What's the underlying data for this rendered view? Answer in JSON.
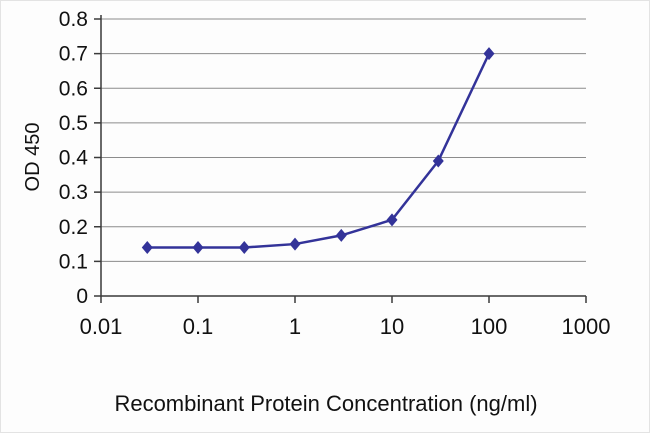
{
  "chart_data": {
    "type": "line",
    "title": "",
    "xlabel": "Recombinant Protein Concentration (ng/ml)",
    "ylabel": "OD 450",
    "x_scale": "log",
    "xlim": [
      0.01,
      1000
    ],
    "ylim": [
      0,
      0.8
    ],
    "xticks": [
      0.01,
      0.1,
      1,
      10,
      100,
      1000
    ],
    "xtick_labels": [
      "0.01",
      "0.1",
      "1",
      "10",
      "100",
      "1000"
    ],
    "ytick_step": 0.1,
    "ytick_labels": [
      "0",
      "0.1",
      "0.2",
      "0.3",
      "0.4",
      "0.5",
      "0.6",
      "0.7",
      "0.8"
    ],
    "grid": "horizontal",
    "legend": "none",
    "marker": "diamond",
    "series": [
      {
        "name": "OD 450",
        "x": [
          0.03,
          0.1,
          0.3,
          1,
          3,
          10,
          30,
          100
        ],
        "y": [
          0.14,
          0.14,
          0.14,
          0.15,
          0.175,
          0.22,
          0.39,
          0.7
        ]
      }
    ],
    "line_color": "#333399",
    "grid_color": "#8c8c8c",
    "axis_color": "#3a3a3a",
    "text_color": "#111111"
  }
}
